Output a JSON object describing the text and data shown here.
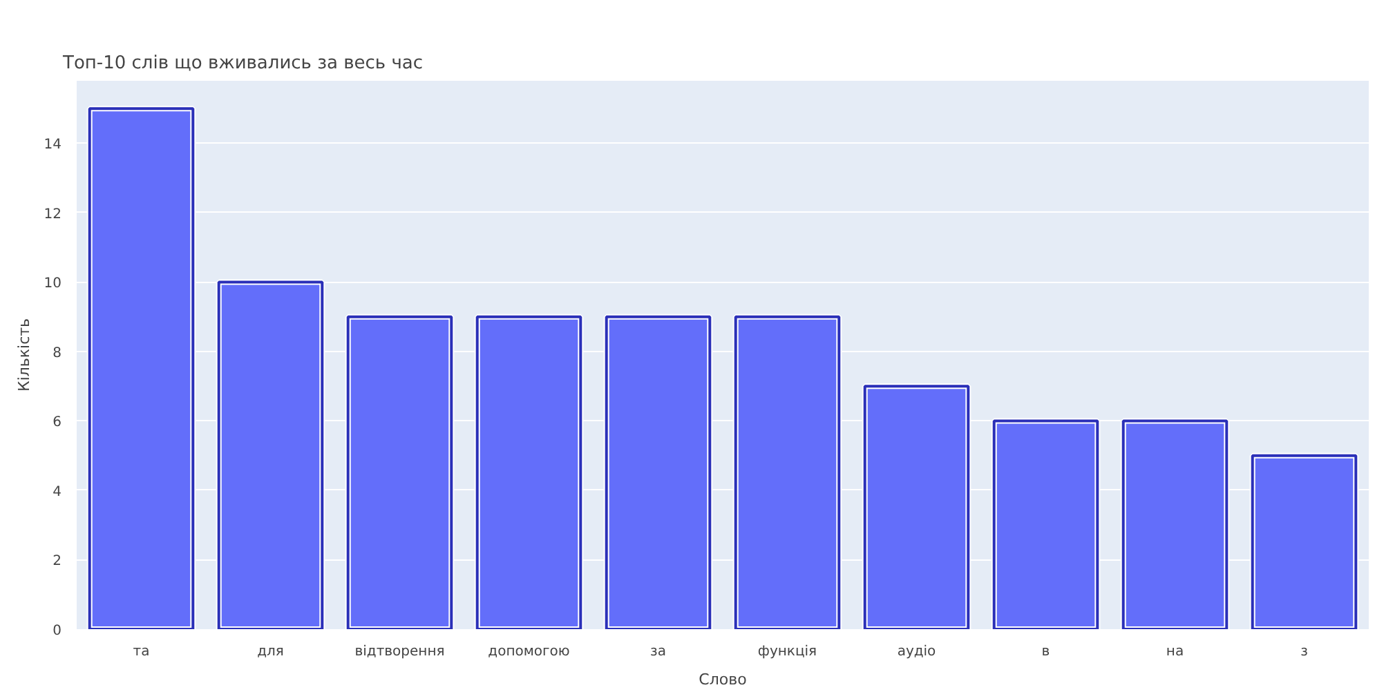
{
  "chart_data": {
    "type": "bar",
    "title": "Топ-10 слів що вживались за весь час",
    "xlabel": "Слово",
    "ylabel": "Кількість",
    "categories": [
      "та",
      "для",
      "відтворення",
      "допомогою",
      "за",
      "функція",
      "аудіо",
      "в",
      "на",
      "з"
    ],
    "values": [
      15,
      10,
      9,
      9,
      9,
      9,
      7,
      6,
      6,
      5
    ],
    "color": "#636efa",
    "ylim": [
      0,
      15.8
    ],
    "yticks": [
      0,
      2,
      4,
      6,
      8,
      10,
      12,
      14
    ],
    "grid": "y"
  }
}
